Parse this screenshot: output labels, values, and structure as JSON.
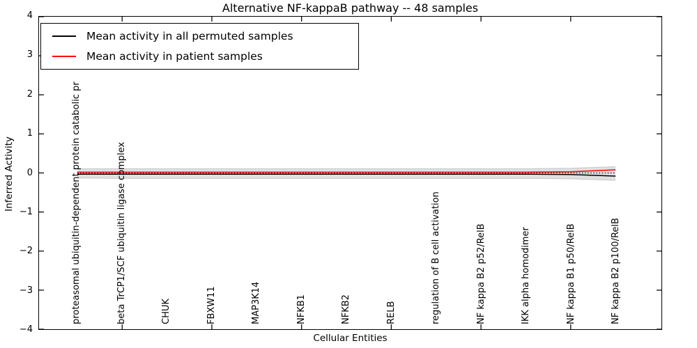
{
  "legend": {
    "items": [
      {
        "label": "Mean activity in all permuted samples",
        "color": "#000000"
      },
      {
        "label": "Mean activity in patient samples",
        "color": "#ff0000"
      }
    ]
  },
  "axes": {
    "ytick_labels": [
      "4",
      "3",
      "2",
      "1",
      "0",
      "−1",
      "−2",
      "−3",
      "−4"
    ]
  },
  "chart_data": {
    "type": "line",
    "title": "Alternative NF-kappaB pathway -- 48 samples",
    "xlabel": "Cellular Entities",
    "ylabel": "Inferred Activity",
    "ylim": [
      -4,
      4
    ],
    "yticks": [
      4,
      3,
      2,
      1,
      0,
      -1,
      -2,
      -3,
      -4
    ],
    "grid": false,
    "legend_position": "upper left",
    "categories": [
      "proteasomal ubiquitin-dependent protein catabolic pr",
      "beta TrCP1/SCF ubiquitin ligase complex",
      "CHUK",
      "FBXW11",
      "MAP3K14",
      "NFKB1",
      "NFKB2",
      "RELB",
      "regulation of B cell activation",
      "NF kappa B2 p52/RelB",
      "IKK alpha homodimer",
      "NF kappa B1 p50/RelB",
      "NF kappa B2 p100/RelB"
    ],
    "series": [
      {
        "name": "Mean activity in all permuted samples",
        "color": "#000000",
        "style": "solid",
        "values": [
          -0.03,
          -0.03,
          -0.03,
          -0.03,
          -0.03,
          -0.03,
          -0.03,
          -0.03,
          -0.03,
          -0.03,
          -0.03,
          -0.04,
          -0.08
        ]
      },
      {
        "name": "Mean activity in patient samples",
        "color": "#ff0000",
        "style": "solid",
        "values": [
          0.02,
          0.02,
          0.02,
          0.02,
          0.02,
          0.02,
          0.02,
          0.02,
          0.02,
          0.02,
          0.02,
          0.03,
          0.08
        ]
      }
    ],
    "reference_line": {
      "y": 0,
      "style": "dotted",
      "color": "#000000"
    },
    "band": {
      "label": "permuted samples spread",
      "color": "#e0e0e0",
      "edge_color": "#c6c6c6",
      "upper": [
        0.11,
        0.11,
        0.11,
        0.11,
        0.11,
        0.11,
        0.11,
        0.11,
        0.11,
        0.11,
        0.11,
        0.12,
        0.16
      ],
      "lower": [
        -0.13,
        -0.14,
        -0.14,
        -0.14,
        -0.14,
        -0.14,
        -0.14,
        -0.14,
        -0.14,
        -0.14,
        -0.14,
        -0.15,
        -0.19
      ]
    }
  }
}
